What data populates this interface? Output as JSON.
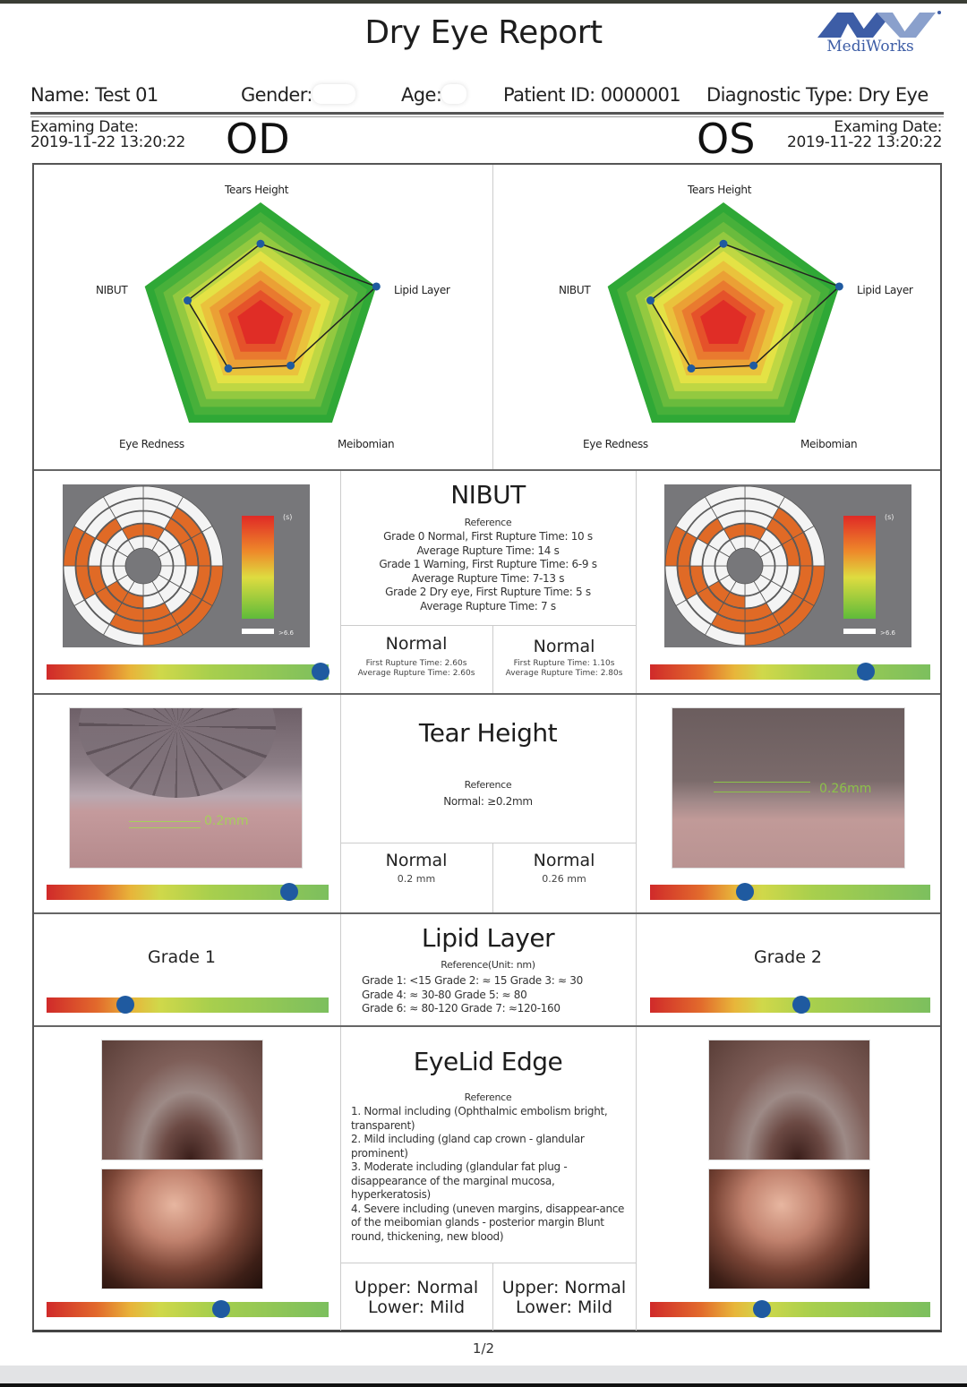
{
  "header": {
    "title": "Dry Eye Report",
    "logo_text": "MediWorks",
    "logo_color": "#3d5da6"
  },
  "patient": {
    "name": "Name: Test 01",
    "gender_label": "Gender:",
    "age_label": "Age:",
    "patient_id": "Patient ID: 0000001",
    "diagnostic_type": "Diagnostic Type: Dry Eye"
  },
  "od": {
    "label": "OD",
    "exam_date_label": "Examing Date:",
    "exam_date": "2019-11-22 13:20:22"
  },
  "os": {
    "label": "OS",
    "exam_date_label": "Examing Date:",
    "exam_date": "2019-11-22 13:20:22"
  },
  "chart_data": [
    {
      "type": "radar",
      "title": "OD",
      "axes": [
        "Tears Height",
        "Lipid Layer",
        "Meibomian",
        "Eye Redness",
        "NIBUT"
      ],
      "values": [
        0.66,
        1.0,
        0.42,
        0.45,
        0.63
      ],
      "range": [
        0,
        1
      ],
      "zones": [
        "red",
        "orange",
        "yellow",
        "green"
      ]
    },
    {
      "type": "radar",
      "title": "OS",
      "axes": [
        "Tears Height",
        "Lipid Layer",
        "Meibomian",
        "Eye Redness",
        "NIBUT"
      ],
      "values": [
        0.66,
        1.0,
        0.42,
        0.45,
        0.63
      ],
      "range": [
        0,
        1
      ],
      "zones": [
        "red",
        "orange",
        "yellow",
        "green"
      ]
    }
  ],
  "radar_labels": {
    "tears_height": "Tears Height",
    "lipid_layer": "Lipid Layer",
    "meibomian": "Meibomian",
    "eye_redness": "Eye Redness",
    "nibut": "NIBUT"
  },
  "nibut": {
    "title": "NIBUT",
    "reference_label": "Reference",
    "reference": "Grade 0 Normal, First Rupture Time: 10 s\nAverage Rupture Time: 14 s\nGrade 1 Warning, First Rupture Time: 6-9 s\nAverage Rupture Time: 7-13 s\nGrade 2 Dry eye, First Rupture Time: 5 s\nAverage Rupture Time: 7 s",
    "map_unit": "(s)",
    "map_legend_max": ">6.6",
    "od": {
      "result": "Normal",
      "detail": "First Rupture Time:  2.60s\nAverage Rupture Time:  2.60s",
      "slider_pct": 97
    },
    "os": {
      "result": "Normal",
      "detail": "First Rupture Time:  1.10s\nAverage Rupture Time:  2.80s",
      "slider_pct": 77
    }
  },
  "tear_height": {
    "title": "Tear Height",
    "reference_label": "Reference",
    "reference": "Normal: ≥0.2mm",
    "od": {
      "result": "Normal",
      "value": "0.2 mm",
      "overlay": "0.2mm",
      "slider_pct": 86
    },
    "os": {
      "result": "Normal",
      "value": "0.26 mm",
      "overlay": "0.26mm",
      "slider_pct": 34
    }
  },
  "lipid_layer": {
    "title": "Lipid Layer",
    "reference_label": "Reference(Unit: nm)",
    "reference": "Grade 1: <15  Grade 2: ≈ 15  Grade 3: ≈ 30\nGrade 4: ≈ 30-80    Grade 5: ≈ 80\nGrade 6: ≈ 80-120  Grade 7: ≈120-160",
    "od": {
      "grade": "Grade 1",
      "slider_pct": 28
    },
    "os": {
      "grade": "Grade 2",
      "slider_pct": 54
    }
  },
  "eyelid_edge": {
    "title": "EyeLid Edge",
    "reference_label": "Reference",
    "reference": [
      "1. Normal including (Ophthalmic embolism bright, transparent)",
      "2. Mild including (gland cap crown - glandular prominent)",
      "3. Moderate including (glandular fat plug - disappearance of the marginal mucosa, hyperkeratosis)",
      "4. Severe including (uneven margins, disappear-ance of the meibomian glands - posterior margin Blunt round, thickening, new blood)"
    ],
    "od": {
      "result": "Upper: Normal\nLower: Mild",
      "slider_pct": 62
    },
    "os": {
      "result": "Upper: Normal\nLower: Mild",
      "slider_pct": 40
    }
  },
  "footer": {
    "page": "1/2"
  }
}
